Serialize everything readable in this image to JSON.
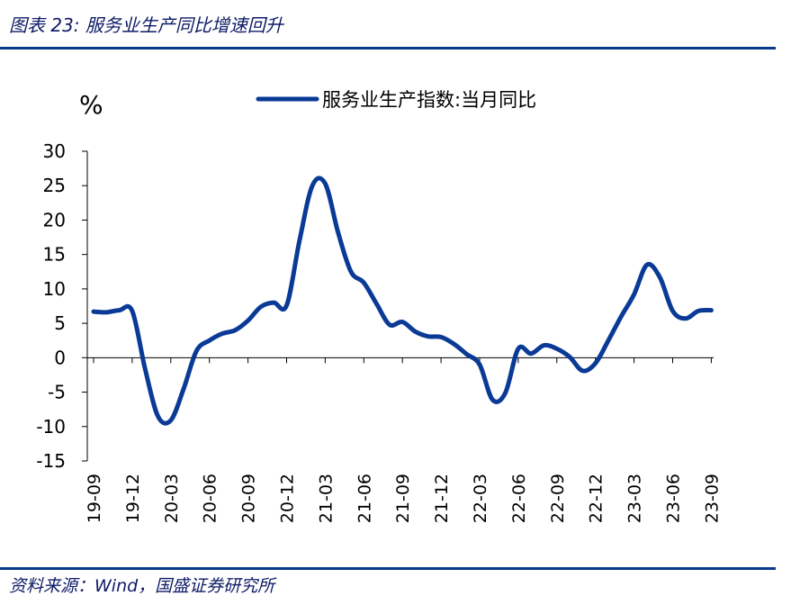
{
  "figure_title": "图表 23: 服务业生产同比增速回升",
  "source_note": "资料来源：Wind，国盛证券研究所",
  "colors": {
    "line": "#0a3a96",
    "rule": "#0a3a8c",
    "title": "#0d1a66"
  },
  "chart_data": {
    "type": "line",
    "y_unit": "%",
    "ylim": [
      -15,
      30
    ],
    "yticks": [
      30,
      25,
      20,
      15,
      10,
      5,
      0,
      -5,
      -10,
      -15
    ],
    "xticks": [
      "19-09",
      "19-12",
      "20-03",
      "20-06",
      "20-09",
      "20-12",
      "21-03",
      "21-06",
      "21-09",
      "21-12",
      "22-03",
      "22-06",
      "22-09",
      "22-12",
      "23-03",
      "23-06",
      "23-09"
    ],
    "grid": false,
    "legend_position": "top",
    "series": [
      {
        "name": "服务业生产指数:当月同比",
        "x": [
          "19-09",
          "19-10",
          "19-11",
          "19-12",
          "20-01",
          "20-02",
          "20-03",
          "20-04",
          "20-05",
          "20-06",
          "20-07",
          "20-08",
          "20-09",
          "20-10",
          "20-11",
          "20-12",
          "21-01",
          "21-02",
          "21-03",
          "21-04",
          "21-05",
          "21-06",
          "21-07",
          "21-08",
          "21-09",
          "21-10",
          "21-11",
          "21-12",
          "22-01",
          "22-02",
          "22-03",
          "22-04",
          "22-05",
          "22-06",
          "22-07",
          "22-08",
          "22-09",
          "22-10",
          "22-11",
          "22-12",
          "23-01",
          "23-02",
          "23-03",
          "23-04",
          "23-05",
          "23-06",
          "23-07",
          "23-08",
          "23-09"
        ],
        "values": [
          6.7,
          6.6,
          6.9,
          6.8,
          -1.6,
          -8.5,
          -9.1,
          -4.5,
          1.0,
          2.5,
          3.5,
          4.0,
          5.4,
          7.4,
          8.0,
          7.6,
          17.0,
          25.0,
          25.3,
          18.2,
          12.5,
          10.9,
          7.8,
          4.8,
          5.2,
          3.8,
          3.1,
          3.0,
          2.0,
          0.5,
          -1.0,
          -6.1,
          -5.1,
          1.3,
          0.6,
          1.8,
          1.3,
          0.1,
          -1.9,
          -0.8,
          2.5,
          6.0,
          9.2,
          13.5,
          11.7,
          6.8,
          5.7,
          6.8,
          6.9
        ]
      }
    ]
  }
}
